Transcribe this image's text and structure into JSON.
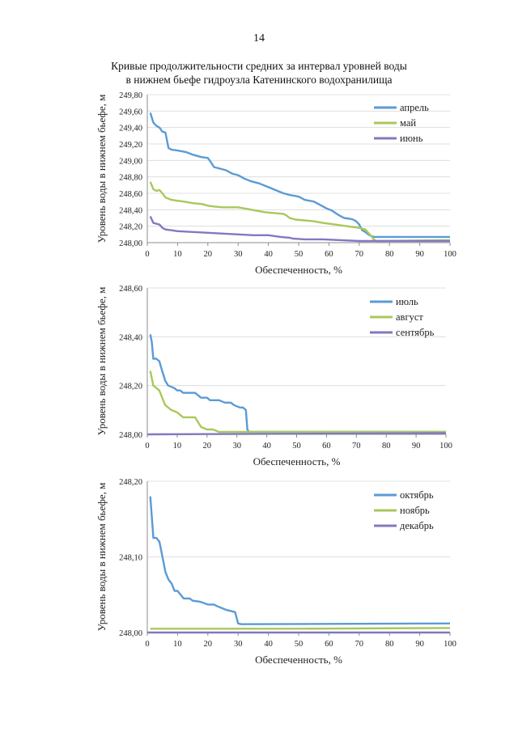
{
  "page": {
    "page_number": "14",
    "title_line1": "Кривые продолжительности средних за интервал уровней воды",
    "title_line2": "в нижнем бьефе гидроузла Катенинского водохранилища"
  },
  "colors": {
    "blue": "#5b9bd5",
    "green": "#a9c85a",
    "purple": "#8079c2",
    "grid": "#d9d9d9",
    "axis": "#8c8c8c"
  },
  "chart_data": [
    {
      "type": "line",
      "title": "",
      "xlabel": "Обеспеченность, %",
      "ylabel": "Уровень воды в нижнем бьефе, м",
      "xlim": [
        0,
        100
      ],
      "ylim": [
        248.0,
        249.8
      ],
      "x_ticks": [
        "0",
        "10",
        "20",
        "30",
        "40",
        "50",
        "60",
        "70",
        "80",
        "90",
        "100"
      ],
      "y_ticks": [
        "248,00",
        "248,20",
        "248,40",
        "248,60",
        "248,80",
        "249,00",
        "249,20",
        "249,40",
        "249,60",
        "249,80"
      ],
      "y_tick_values": [
        248.0,
        248.2,
        248.4,
        248.6,
        248.8,
        249.0,
        249.2,
        249.4,
        249.6,
        249.8
      ],
      "legend_position": "top-right",
      "series": [
        {
          "name": "апрель",
          "color": "#5b9bd5",
          "points": [
            [
              1,
              249.58
            ],
            [
              2,
              249.46
            ],
            [
              3,
              249.42
            ],
            [
              4,
              249.4
            ],
            [
              5,
              249.35
            ],
            [
              6,
              249.34
            ],
            [
              7,
              249.15
            ],
            [
              8,
              249.13
            ],
            [
              10,
              249.12
            ],
            [
              13,
              249.1
            ],
            [
              15,
              249.07
            ],
            [
              18,
              249.04
            ],
            [
              20,
              249.03
            ],
            [
              21,
              248.98
            ],
            [
              22,
              248.92
            ],
            [
              24,
              248.9
            ],
            [
              26,
              248.88
            ],
            [
              28,
              248.84
            ],
            [
              30,
              248.82
            ],
            [
              32,
              248.78
            ],
            [
              34,
              248.75
            ],
            [
              37,
              248.72
            ],
            [
              39,
              248.69
            ],
            [
              41,
              248.66
            ],
            [
              43,
              248.63
            ],
            [
              45,
              248.6
            ],
            [
              47,
              248.58
            ],
            [
              50,
              248.56
            ],
            [
              52,
              248.52
            ],
            [
              55,
              248.5
            ],
            [
              57,
              248.46
            ],
            [
              59,
              248.42
            ],
            [
              61,
              248.39
            ],
            [
              63,
              248.34
            ],
            [
              65,
              248.3
            ],
            [
              67,
              248.29
            ],
            [
              68,
              248.28
            ],
            [
              69,
              248.26
            ],
            [
              70,
              248.22
            ],
            [
              71,
              248.15
            ],
            [
              72,
              248.13
            ],
            [
              73,
              248.1
            ],
            [
              74,
              248.08
            ],
            [
              75,
              248.07
            ],
            [
              100,
              248.07
            ]
          ]
        },
        {
          "name": "май",
          "color": "#a9c85a",
          "points": [
            [
              1,
              248.74
            ],
            [
              2,
              248.65
            ],
            [
              3,
              248.63
            ],
            [
              4,
              248.64
            ],
            [
              5,
              248.6
            ],
            [
              6,
              248.55
            ],
            [
              8,
              248.52
            ],
            [
              10,
              248.51
            ],
            [
              12,
              248.5
            ],
            [
              15,
              248.48
            ],
            [
              18,
              248.47
            ],
            [
              20,
              248.45
            ],
            [
              22,
              248.44
            ],
            [
              25,
              248.43
            ],
            [
              30,
              248.43
            ],
            [
              33,
              248.41
            ],
            [
              36,
              248.39
            ],
            [
              39,
              248.37
            ],
            [
              42,
              248.36
            ],
            [
              45,
              248.35
            ],
            [
              46,
              248.33
            ],
            [
              47,
              248.3
            ],
            [
              49,
              248.28
            ],
            [
              52,
              248.27
            ],
            [
              55,
              248.26
            ],
            [
              58,
              248.24
            ],
            [
              62,
              248.22
            ],
            [
              66,
              248.2
            ],
            [
              70,
              248.18
            ],
            [
              72,
              248.16
            ],
            [
              73,
              248.12
            ],
            [
              74,
              248.08
            ],
            [
              75,
              248.03
            ],
            [
              76,
              248.02
            ],
            [
              100,
              248.03
            ]
          ]
        },
        {
          "name": "июнь",
          "color": "#8079c2",
          "points": [
            [
              1,
              248.32
            ],
            [
              2,
              248.24
            ],
            [
              4,
              248.22
            ],
            [
              5,
              248.18
            ],
            [
              6,
              248.16
            ],
            [
              8,
              248.15
            ],
            [
              10,
              248.14
            ],
            [
              15,
              248.13
            ],
            [
              20,
              248.12
            ],
            [
              25,
              248.11
            ],
            [
              30,
              248.1
            ],
            [
              35,
              248.09
            ],
            [
              40,
              248.09
            ],
            [
              44,
              248.07
            ],
            [
              47,
              248.06
            ],
            [
              48,
              248.05
            ],
            [
              52,
              248.04
            ],
            [
              58,
              248.04
            ],
            [
              64,
              248.03
            ],
            [
              70,
              248.02
            ],
            [
              80,
              248.02
            ],
            [
              90,
              248.02
            ],
            [
              100,
              248.02
            ]
          ]
        }
      ]
    },
    {
      "type": "line",
      "title": "",
      "xlabel": "Обеспеченность, %",
      "ylabel": "Уровень воды в нижнем бьефе, м",
      "xlim": [
        0,
        100
      ],
      "ylim": [
        248.0,
        248.6
      ],
      "x_ticks": [
        "0",
        "10",
        "20",
        "30",
        "40",
        "50",
        "60",
        "70",
        "80",
        "90",
        "100"
      ],
      "y_ticks": [
        "248,00",
        "248,20",
        "248,40",
        "248,60"
      ],
      "y_tick_values": [
        248.0,
        248.2,
        248.4,
        248.6
      ],
      "legend_position": "top-right",
      "series": [
        {
          "name": "июль",
          "color": "#5b9bd5",
          "points": [
            [
              1,
              248.41
            ],
            [
              1.5,
              248.38
            ],
            [
              2,
              248.31
            ],
            [
              3,
              248.31
            ],
            [
              4,
              248.3
            ],
            [
              5,
              248.26
            ],
            [
              6,
              248.22
            ],
            [
              7,
              248.2
            ],
            [
              9,
              248.19
            ],
            [
              10,
              248.18
            ],
            [
              11,
              248.18
            ],
            [
              12,
              248.17
            ],
            [
              16,
              248.17
            ],
            [
              17,
              248.16
            ],
            [
              18,
              248.15
            ],
            [
              20,
              248.15
            ],
            [
              21,
              248.14
            ],
            [
              24,
              248.14
            ],
            [
              26,
              248.13
            ],
            [
              28,
              248.13
            ],
            [
              29,
              248.12
            ],
            [
              31,
              248.11
            ],
            [
              32,
              248.11
            ],
            [
              33,
              248.1
            ],
            [
              33.5,
              248.02
            ],
            [
              34,
              248.01
            ],
            [
              100,
              248.01
            ]
          ]
        },
        {
          "name": "август",
          "color": "#a9c85a",
          "points": [
            [
              1,
              248.26
            ],
            [
              2,
              248.2
            ],
            [
              3,
              248.19
            ],
            [
              4,
              248.18
            ],
            [
              5,
              248.15
            ],
            [
              6,
              248.12
            ],
            [
              8,
              248.1
            ],
            [
              10,
              248.09
            ],
            [
              11,
              248.08
            ],
            [
              12,
              248.07
            ],
            [
              16,
              248.07
            ],
            [
              17,
              248.05
            ],
            [
              18,
              248.03
            ],
            [
              20,
              248.02
            ],
            [
              22,
              248.02
            ],
            [
              24,
              248.01
            ],
            [
              100,
              248.01
            ]
          ]
        },
        {
          "name": "сентябрь",
          "color": "#8079c2",
          "points": [
            [
              0,
              248.0
            ],
            [
              100,
              248.005
            ]
          ]
        }
      ]
    },
    {
      "type": "line",
      "title": "",
      "xlabel": "Обеспеченность, %",
      "ylabel": "Уровень воды в нижнем бьефе, м",
      "xlim": [
        0,
        100
      ],
      "ylim": [
        248.0,
        248.2
      ],
      "x_ticks": [
        "0",
        "10",
        "20",
        "30",
        "40",
        "50",
        "60",
        "70",
        "80",
        "90",
        "100"
      ],
      "y_ticks": [
        "248,00",
        "248,10",
        "248,20"
      ],
      "y_tick_values": [
        248.0,
        248.1,
        248.2
      ],
      "legend_position": "top-right",
      "series": [
        {
          "name": "октябрь",
          "color": "#5b9bd5",
          "points": [
            [
              1,
              248.18
            ],
            [
              2,
              248.125
            ],
            [
              3,
              248.125
            ],
            [
              4,
              248.12
            ],
            [
              5,
              248.1
            ],
            [
              6,
              248.08
            ],
            [
              7,
              248.07
            ],
            [
              8,
              248.065
            ],
            [
              9,
              248.055
            ],
            [
              10,
              248.055
            ],
            [
              11,
              248.05
            ],
            [
              12,
              248.045
            ],
            [
              14,
              248.045
            ],
            [
              15,
              248.042
            ],
            [
              17,
              248.041
            ],
            [
              18,
              248.04
            ],
            [
              20,
              248.037
            ],
            [
              22,
              248.037
            ],
            [
              23,
              248.035
            ],
            [
              26,
              248.03
            ],
            [
              28,
              248.028
            ],
            [
              29,
              248.027
            ],
            [
              30,
              248.012
            ],
            [
              31,
              248.011
            ],
            [
              100,
              248.012
            ]
          ]
        },
        {
          "name": "ноябрь",
          "color": "#a9c85a",
          "points": [
            [
              1,
              248.005
            ],
            [
              50,
              248.005
            ],
            [
              100,
              248.006
            ]
          ]
        },
        {
          "name": "декабрь",
          "color": "#8079c2",
          "points": [
            [
              0,
              248.0
            ],
            [
              100,
              248.0
            ]
          ]
        }
      ]
    }
  ]
}
